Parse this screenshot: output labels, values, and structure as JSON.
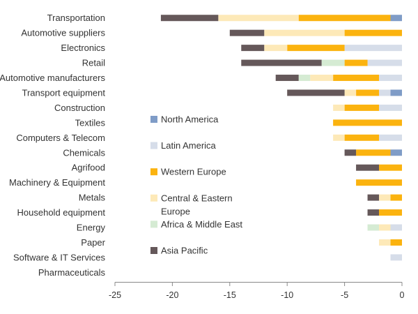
{
  "chart_data": {
    "type": "bar",
    "orientation": "horizontal",
    "stacked": true,
    "title": "",
    "xlabel": "",
    "ylabel": "",
    "xlim": [
      -25,
      0
    ],
    "xticks": [
      -25,
      -20,
      -15,
      -10,
      -5,
      0
    ],
    "grid": false,
    "legend_position": "center",
    "categories": [
      "Transportation",
      "Automotive suppliers",
      "Electronics",
      "Retail",
      "Automotive manufacturers",
      "Transport equipment",
      "Construction",
      "Textiles",
      "Computers & Telecom",
      "Chemicals",
      "Agrifood",
      "Machinery & Equipment",
      "Metals",
      "Household equipment",
      "Energy",
      "Paper",
      "Software & IT Services",
      "Pharmaceuticals"
    ],
    "series": [
      {
        "name": "North America",
        "color": "#7f9cc7",
        "values": [
          -1,
          0,
          0,
          0,
          0,
          -1,
          0,
          0,
          0,
          -1,
          0,
          0,
          0,
          0,
          0,
          0,
          0,
          0
        ]
      },
      {
        "name": "Latin America",
        "color": "#d6dde9",
        "values": [
          0,
          0,
          -5,
          -3,
          -2,
          -1,
          -2,
          0,
          -2,
          0,
          0,
          0,
          0,
          0,
          -1,
          0,
          -1,
          0
        ]
      },
      {
        "name": "Western Europe",
        "color": "#fbb30f",
        "values": [
          -8,
          -5,
          -5,
          -2,
          -4,
          -2,
          -3,
          -6,
          -3,
          -3,
          -2,
          -4,
          -1,
          -2,
          0,
          -1,
          0,
          0
        ]
      },
      {
        "name": "Central & Eastern Europe",
        "label_lines": [
          "Central & Eastern",
          "Europe"
        ],
        "color": "#fde9b8",
        "values": [
          -7,
          -7,
          -2,
          0,
          -2,
          -1,
          -1,
          0,
          -1,
          0,
          0,
          0,
          -1,
          0,
          -1,
          -1,
          0,
          0
        ]
      },
      {
        "name": "Africa & Middle East",
        "color": "#d5ebd3",
        "values": [
          0,
          0,
          0,
          -2,
          -1,
          0,
          0,
          0,
          0,
          0,
          0,
          0,
          0,
          0,
          -1,
          0,
          0,
          0
        ]
      },
      {
        "name": "Asia Pacific",
        "color": "#65585a",
        "values": [
          -5,
          -3,
          -2,
          -7,
          -2,
          -5,
          0,
          0,
          0,
          -1,
          -2,
          0,
          -1,
          -1,
          0,
          0,
          0,
          0
        ]
      }
    ]
  }
}
